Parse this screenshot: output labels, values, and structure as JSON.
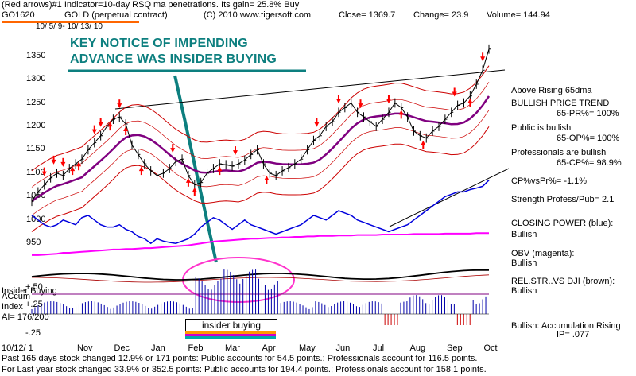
{
  "header": {
    "line1": "(Red arrows)#1 Indicator=10-day RSQ ma penetrations. Its gain= 25.8% Buy",
    "symbol": "GO1620",
    "name": "GOLD (perpetual contract)",
    "copyright": "(C) 2010 www.tigersoft.com",
    "close": "Close= 1369.7",
    "change": "Change= 23.9",
    "volume": "Volume= 144.94",
    "dates": "10/ 5/ 9- 10/ 13/ 10"
  },
  "annotation": {
    "line1": "KEY NOTICE OF IMPENDING",
    "line2": "ADVANCE WAS INSIDER BUYING",
    "box_label": "insider buying"
  },
  "side_panel": [
    {
      "key": "a",
      "text": "Above Rising 65dma"
    },
    {
      "key": "b",
      "text": "BULLISH PRICE TREND"
    },
    {
      "key": "c",
      "text": "65-PR%= 100%"
    },
    {
      "key": "d",
      "text": "Public is bullish"
    },
    {
      "key": "e",
      "text": "65-OP%= 100%"
    },
    {
      "key": "f",
      "text": "Professionals are bullish"
    },
    {
      "key": "g",
      "text": "65-CP%= 98.9%"
    },
    {
      "key": "h",
      "text": "CP%vsPr%= -1.1%"
    },
    {
      "key": "i",
      "text": "Strength Profess/Pub= 2.1"
    },
    {
      "key": "j",
      "text": "CLOSING POWER (blue):"
    },
    {
      "key": "k",
      "text": "Bullish"
    },
    {
      "key": "l",
      "text": "OBV (magenta):"
    },
    {
      "key": "m",
      "text": "Bullish"
    },
    {
      "key": "n",
      "text": "REL.STR..VS DJI (brown):"
    },
    {
      "key": "o",
      "text": "Bullish"
    },
    {
      "key": "p",
      "text": "Bullish: Accumulation Rising"
    },
    {
      "key": "q",
      "text": "IP= .077"
    }
  ],
  "lower_labels": {
    "insider": "Insider Buying",
    "accum": "ACcum",
    "index": "Index",
    "ai": "AI= 176/200",
    "p50": "+.50",
    "p25": "+.25",
    "m25": "-.25"
  },
  "footer": {
    "line1": "Past 165 days stock changed 12.9% or 171 points: Public accounts for 54.5 points.; Professionals account for 116.5 points.",
    "line2": "For Last year stock changed 33.9% or 352.5 points: Public accounts for 194.4 points.; Professionals account for 158.1 points.",
    "date": "10/12/ 1"
  },
  "chart_data": {
    "type": "line",
    "y_ticks": [
      1350,
      1300,
      1250,
      1200,
      1150,
      1100,
      1050,
      1000,
      950
    ],
    "ylim": [
      930,
      1385
    ],
    "months": [
      "Nov",
      "Dec",
      "Jan",
      "Feb",
      "Mar",
      "Apr",
      "May",
      "Jun",
      "Jul",
      "Aug",
      "Sep",
      "Oct"
    ],
    "x": [
      0,
      4,
      8,
      12,
      16,
      20,
      24,
      28,
      32,
      36,
      40,
      44,
      48,
      52,
      56,
      60,
      64,
      68,
      72,
      76,
      80,
      84,
      88,
      92,
      96,
      100,
      104,
      108,
      112,
      116,
      120,
      124,
      128,
      132,
      136,
      140,
      144,
      148,
      152,
      156,
      160,
      164,
      168,
      172,
      176,
      180,
      184,
      188,
      192,
      196,
      200,
      204,
      208,
      212,
      216,
      220,
      224,
      228,
      232,
      236,
      240,
      244,
      248,
      252,
      256,
      260,
      264,
      268,
      272,
      276,
      280,
      284,
      288,
      292
    ],
    "series": [
      {
        "key": "price",
        "values": [
          1040,
          1060,
          1075,
          1090,
          1100,
          1095,
          1110,
          1120,
          1130,
          1150,
          1165,
          1180,
          1200,
          1215,
          1220,
          1205,
          1160,
          1140,
          1120,
          1105,
          1095,
          1100,
          1110,
          1125,
          1130,
          1095,
          1075,
          1080,
          1100,
          1110,
          1120,
          1118,
          1115,
          1120,
          1128,
          1140,
          1150,
          1120,
          1100,
          1095,
          1105,
          1112,
          1120,
          1130,
          1150,
          1170,
          1180,
          1200,
          1210,
          1230,
          1240,
          1250,
          1230,
          1220,
          1210,
          1200,
          1215,
          1230,
          1250,
          1240,
          1220,
          1190,
          1180,
          1175,
          1190,
          1200,
          1215,
          1230,
          1245,
          1250,
          1265,
          1290,
          1320,
          1365
        ]
      },
      {
        "key": "closing_power",
        "values": [
          1010,
          1000,
          990,
          985,
          990,
          1000,
          995,
          990,
          1005,
          1010,
          1000,
          990,
          985,
          985,
          990,
          980,
          975,
          965,
          960,
          950,
          960,
          955,
          952,
          950,
          955,
          960,
          970,
          985,
          995,
          1005,
          1000,
          990,
          980,
          990,
          1000,
          990,
          985,
          980,
          975,
          970,
          975,
          980,
          985,
          990,
          1000,
          1010,
          1005,
          1000,
          1010,
          1020,
          1015,
          1010,
          1000,
          995,
          990,
          985,
          980,
          975,
          980,
          985,
          990,
          1000,
          1010,
          1020,
          1030,
          1040,
          1050,
          1055,
          1060,
          1060,
          1065,
          1068,
          1072,
          1085
        ]
      },
      {
        "key": "obv",
        "values": [
          925,
          925,
          926,
          927,
          928,
          930,
          930,
          931,
          932,
          933,
          934,
          935,
          936,
          937,
          937,
          938,
          938,
          939,
          940,
          940,
          941,
          942,
          943,
          944,
          945,
          946,
          948,
          950,
          952,
          954,
          955,
          956,
          957,
          958,
          959,
          960,
          960,
          961,
          962,
          962,
          963,
          963,
          964,
          964,
          965,
          965,
          966,
          966,
          966,
          967,
          967,
          967,
          968,
          968,
          968,
          968,
          969,
          969,
          969,
          969,
          969,
          970,
          970,
          970,
          970,
          970,
          971,
          971,
          971,
          971,
          971,
          972,
          972,
          972
        ]
      }
    ]
  },
  "colors": {
    "price": "#000000",
    "bands": "#cc0000",
    "ma65": "#800080",
    "closing_power": "#0000dd",
    "obv": "#ff00ff",
    "accum": "#0000aa",
    "annotation": "#0d7f7f",
    "ellipse": "#ff33cc",
    "arrows": "#ff0000"
  }
}
